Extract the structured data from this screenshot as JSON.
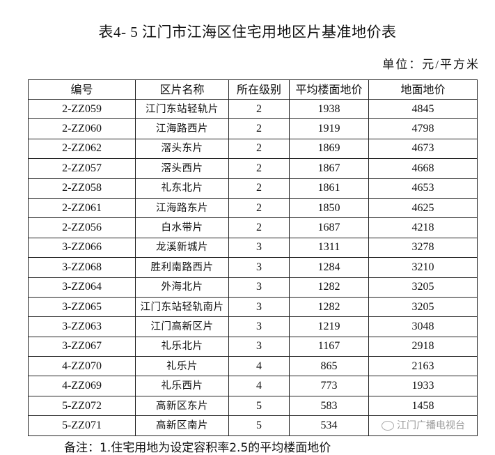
{
  "title": "表4- 5 江门市江海区住宅用地区片基准地价表",
  "unit": "单位：元/平方米",
  "table": {
    "headers": [
      "编号",
      "区片名称",
      "所在级别",
      "平均楼面地价",
      "地面地价"
    ],
    "rows": [
      [
        "2-ZZ059",
        "江门东站轻轨片",
        "2",
        "1938",
        "4845"
      ],
      [
        "2-ZZ060",
        "江海路西片",
        "2",
        "1919",
        "4798"
      ],
      [
        "2-ZZ062",
        "滘头东片",
        "2",
        "1869",
        "4673"
      ],
      [
        "2-ZZ057",
        "滘头西片",
        "2",
        "1867",
        "4668"
      ],
      [
        "2-ZZ058",
        "礼东北片",
        "2",
        "1861",
        "4653"
      ],
      [
        "2-ZZ061",
        "江海路东片",
        "2",
        "1850",
        "4625"
      ],
      [
        "2-ZZ056",
        "白水带片",
        "2",
        "1687",
        "4218"
      ],
      [
        "3-ZZ066",
        "龙溪新城片",
        "3",
        "1311",
        "3278"
      ],
      [
        "3-ZZ068",
        "胜利南路西片",
        "3",
        "1284",
        "3210"
      ],
      [
        "3-ZZ064",
        "外海北片",
        "3",
        "1282",
        "3205"
      ],
      [
        "3-ZZ065",
        "江门东站轻轨南片",
        "3",
        "1282",
        "3205"
      ],
      [
        "3-ZZ063",
        "江门高新区片",
        "3",
        "1219",
        "3048"
      ],
      [
        "3-ZZ067",
        "礼乐北片",
        "3",
        "1167",
        "2918"
      ],
      [
        "4-ZZ070",
        "礼乐片",
        "4",
        "865",
        "2163"
      ],
      [
        "4-ZZ069",
        "礼乐西片",
        "4",
        "773",
        "1933"
      ],
      [
        "5-ZZ072",
        "高新区东片",
        "5",
        "583",
        "1458"
      ],
      [
        "5-ZZ071",
        "高新区南片",
        "5",
        "534",
        ""
      ]
    ]
  },
  "note": "备注：1.住宅用地为设定容积率2.5的平均楼面地价",
  "watermark": "江门广播电视台"
}
